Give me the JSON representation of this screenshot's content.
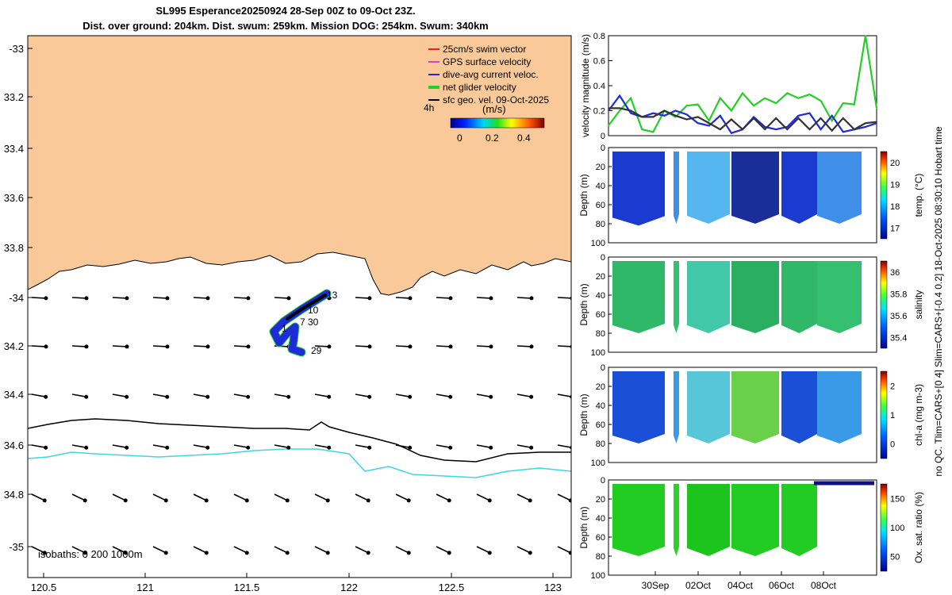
{
  "title": {
    "line1": "SL995 Esperance20250924 28-Sep 00Z to 09-Oct 23Z.",
    "line2": "Dist. over ground: 204km. Dist. swum: 259km. Mission DOG: 254km. Swum: 340km"
  },
  "map": {
    "lat_ticks": [
      "-33",
      "33.2",
      "33.4",
      "33.6",
      "33.8",
      "-34",
      "34.2",
      "34.4",
      "34.6",
      "34.8",
      "-35"
    ],
    "lon_ticks": [
      "120.5",
      "121",
      "121.5",
      "122",
      "122.5",
      "123"
    ],
    "legend": [
      {
        "label": "25cm/s swim vector",
        "color": "#e8231a"
      },
      {
        "label": "GPS surface velocity",
        "color": "#e23bd9"
      },
      {
        "label": "dive-avg current veloc.",
        "color": "#1f2bd8"
      },
      {
        "label": "net glider velocity",
        "color": "#22d022"
      },
      {
        "label": "sfc geo. vel. 09-Oct-2025",
        "color": "#000000"
      }
    ],
    "interval_label": "4h",
    "colorbar": {
      "units": "(m/s)",
      "ticks": [
        "0",
        "0.2",
        "0.4"
      ]
    },
    "isobaths_label": "isobaths: 0   200  1000m",
    "track_labels": [
      "13",
      "10",
      "7",
      "30",
      "1",
      "29"
    ],
    "colors": {
      "land": "#f9c99a",
      "shelf": "#000000",
      "deep": "#3fd6e0",
      "track": "#1f2bd8",
      "glider": "#22d022"
    }
  },
  "velocity_panel": {
    "ylabel": "velocity magnitude (m/s)",
    "yticks": [
      "0",
      "0.2",
      "0.4",
      "0.6",
      "0.8"
    ]
  },
  "sections": [
    {
      "label": "temp. (°C)",
      "ticks": [
        "17",
        "18",
        "19",
        "20"
      ]
    },
    {
      "label": "salinity",
      "ticks": [
        "35.4",
        "35.6",
        "35.8",
        "36"
      ]
    },
    {
      "label": "chl-a (mg m-3)",
      "ticks": [
        "0",
        "1",
        "2"
      ]
    },
    {
      "label": "Ox. sat. ratio (%)",
      "ticks": [
        "50",
        "100",
        "150"
      ]
    }
  ],
  "depth_ylabel": "Depth (m)",
  "depth_ticks": [
    "0",
    "20",
    "40",
    "60",
    "80",
    "100"
  ],
  "date_ticks": [
    "30Sep",
    "02Oct",
    "04Oct",
    "06Oct",
    "08Oct"
  ],
  "side_note": "no QC. Tlim=CARS+[0 4] Slim=CARS+[-0.4 0.2] 18-Oct-2025 08:30:10 Hobart time",
  "chart_data": [
    {
      "type": "line",
      "title": "velocity magnitude",
      "ylabel": "velocity magnitude (m/s)",
      "ylim": [
        0,
        0.8
      ],
      "x_days": [
        0,
        0.5,
        1,
        1.5,
        2,
        2.5,
        3,
        3.5,
        4,
        4.5,
        5,
        5.5,
        6,
        6.5,
        7,
        7.5,
        8,
        8.5,
        9,
        9.5,
        10,
        10.5,
        11,
        11.5,
        12
      ],
      "series": [
        {
          "name": "net glider velocity",
          "color": "#22d022",
          "values": [
            0.08,
            0.2,
            0.3,
            0.05,
            0.03,
            0.2,
            0.15,
            0.24,
            0.25,
            0.12,
            0.3,
            0.2,
            0.34,
            0.24,
            0.3,
            0.26,
            0.34,
            0.3,
            0.33,
            0.28,
            0.12,
            0.26,
            0.25,
            0.8,
            0.22
          ]
        },
        {
          "name": "dive-avg current veloc.",
          "color": "#1f2bd8",
          "values": [
            0.2,
            0.32,
            0.18,
            0.15,
            0.18,
            0.16,
            0.2,
            0.17,
            0.1,
            0.08,
            0.16,
            0.02,
            0.05,
            0.15,
            0.07,
            0.05,
            0.07,
            0.16,
            0.18,
            0.05,
            0.16,
            0.03,
            0.05,
            0.07,
            0.1
          ]
        },
        {
          "name": "sfc geo. vel.",
          "color": "#333333",
          "values": [
            0.22,
            0.22,
            0.2,
            0.15,
            0.15,
            0.2,
            0.16,
            0.13,
            0.15,
            0.1,
            0.05,
            0.13,
            0.05,
            0.14,
            0.05,
            0.14,
            0.05,
            0.14,
            0.05,
            0.14,
            0.04,
            0.14,
            0.05,
            0.1,
            0.11
          ]
        }
      ]
    }
  ]
}
